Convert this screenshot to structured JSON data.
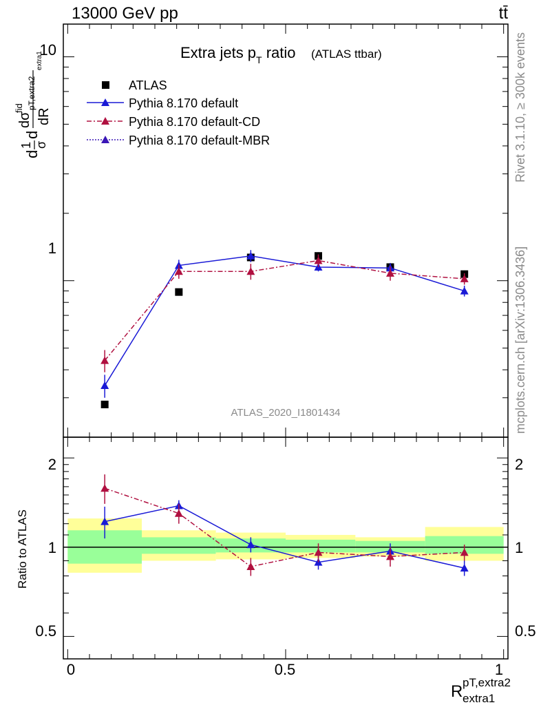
{
  "header": {
    "left": "13000 GeV pp",
    "right": "tt̄"
  },
  "side_labels": {
    "rivet": "Rivet 3.1.10, ≥ 300k events",
    "mcplots": "mcplots.cern.ch [arXiv:1306.3436]"
  },
  "watermark": "ATLAS_2020_I1801434",
  "chart_data": [
    {
      "type": "scatter",
      "title": "Extra jets p",
      "title_sub": "T",
      "title_tail": " ratio",
      "title_note": "(ATLAS ttbar)",
      "ylabel": "dσ/dR (1/σ)",
      "yscale": "log",
      "ylim": [
        0.2,
        14
      ],
      "xlim": [
        -0.01,
        1.01
      ],
      "ytick_labels": [
        "1",
        "10"
      ],
      "series": [
        {
          "name": "ATLAS",
          "color": "#000000",
          "marker": "square",
          "x": [
            0.085,
            0.255,
            0.42,
            0.575,
            0.74,
            0.91
          ],
          "y": [
            0.28,
            0.89,
            1.27,
            1.29,
            1.15,
            1.07
          ],
          "err": [
            0.01,
            0.02,
            0.05,
            0.05,
            0.04,
            0.04
          ]
        },
        {
          "name": "Pythia 8.170 default",
          "color": "#1a1ad6",
          "line": "solid",
          "x": [
            0.085,
            0.255,
            0.42,
            0.575,
            0.74,
            0.91
          ],
          "y": [
            0.34,
            1.17,
            1.29,
            1.15,
            1.14,
            0.9
          ],
          "err": [
            0.04,
            0.07,
            0.08,
            0.05,
            0.06,
            0.05
          ]
        },
        {
          "name": "Pythia 8.170 default-CD",
          "color": "#b01040",
          "line": "dashdot",
          "x": [
            0.085,
            0.255,
            0.42,
            0.575,
            0.74,
            0.91
          ],
          "y": [
            0.44,
            1.1,
            1.1,
            1.23,
            1.08,
            1.02
          ],
          "err": [
            0.05,
            0.08,
            0.09,
            0.08,
            0.08,
            0.06
          ]
        },
        {
          "name": "Pythia 8.170 default-MBR",
          "color": "#3a16b6",
          "line": "dotted",
          "x": [],
          "y": []
        }
      ]
    },
    {
      "type": "scatter",
      "ylabel": "Ratio to ATLAS",
      "yscale": "log",
      "ylim": [
        0.42,
        2.35
      ],
      "xlim": [
        -0.01,
        1.01
      ],
      "xlabel": "R",
      "xlabel_sup": "pT,extra2",
      "xlabel_sub": "extra1",
      "ytick_labels": [
        "0.5",
        "1",
        "2"
      ],
      "xtick_labels": [
        "0",
        "0.5",
        "1"
      ],
      "bands": [
        {
          "x0": 0.0,
          "x1": 0.17,
          "green": [
            0.88,
            1.14
          ],
          "yellow": [
            0.82,
            1.25
          ]
        },
        {
          "x0": 0.17,
          "x1": 0.34,
          "green": [
            0.95,
            1.08
          ],
          "yellow": [
            0.9,
            1.14
          ]
        },
        {
          "x0": 0.34,
          "x1": 0.5,
          "green": [
            0.96,
            1.07
          ],
          "yellow": [
            0.91,
            1.12
          ]
        },
        {
          "x0": 0.5,
          "x1": 0.66,
          "green": [
            0.96,
            1.06
          ],
          "yellow": [
            0.92,
            1.1
          ]
        },
        {
          "x0": 0.66,
          "x1": 0.82,
          "green": [
            0.96,
            1.05
          ],
          "yellow": [
            0.93,
            1.08
          ]
        },
        {
          "x0": 0.82,
          "x1": 1.0,
          "green": [
            0.95,
            1.09
          ],
          "yellow": [
            0.9,
            1.17
          ]
        }
      ],
      "series": [
        {
          "name": "Pythia 8.170 default",
          "color": "#1a1ad6",
          "line": "solid",
          "x": [
            0.085,
            0.255,
            0.42,
            0.575,
            0.74,
            0.91
          ],
          "y": [
            1.22,
            1.38,
            1.02,
            0.89,
            0.97,
            0.85
          ],
          "err": [
            0.15,
            0.06,
            0.06,
            0.05,
            0.06,
            0.05
          ]
        },
        {
          "name": "Pythia 8.170 default-CD",
          "color": "#b01040",
          "line": "dashdot",
          "x": [
            0.085,
            0.255,
            0.42,
            0.575,
            0.74,
            0.91
          ],
          "y": [
            1.58,
            1.3,
            0.86,
            0.96,
            0.93,
            0.96
          ],
          "err": [
            0.18,
            0.1,
            0.06,
            0.07,
            0.07,
            0.06
          ]
        }
      ]
    }
  ]
}
